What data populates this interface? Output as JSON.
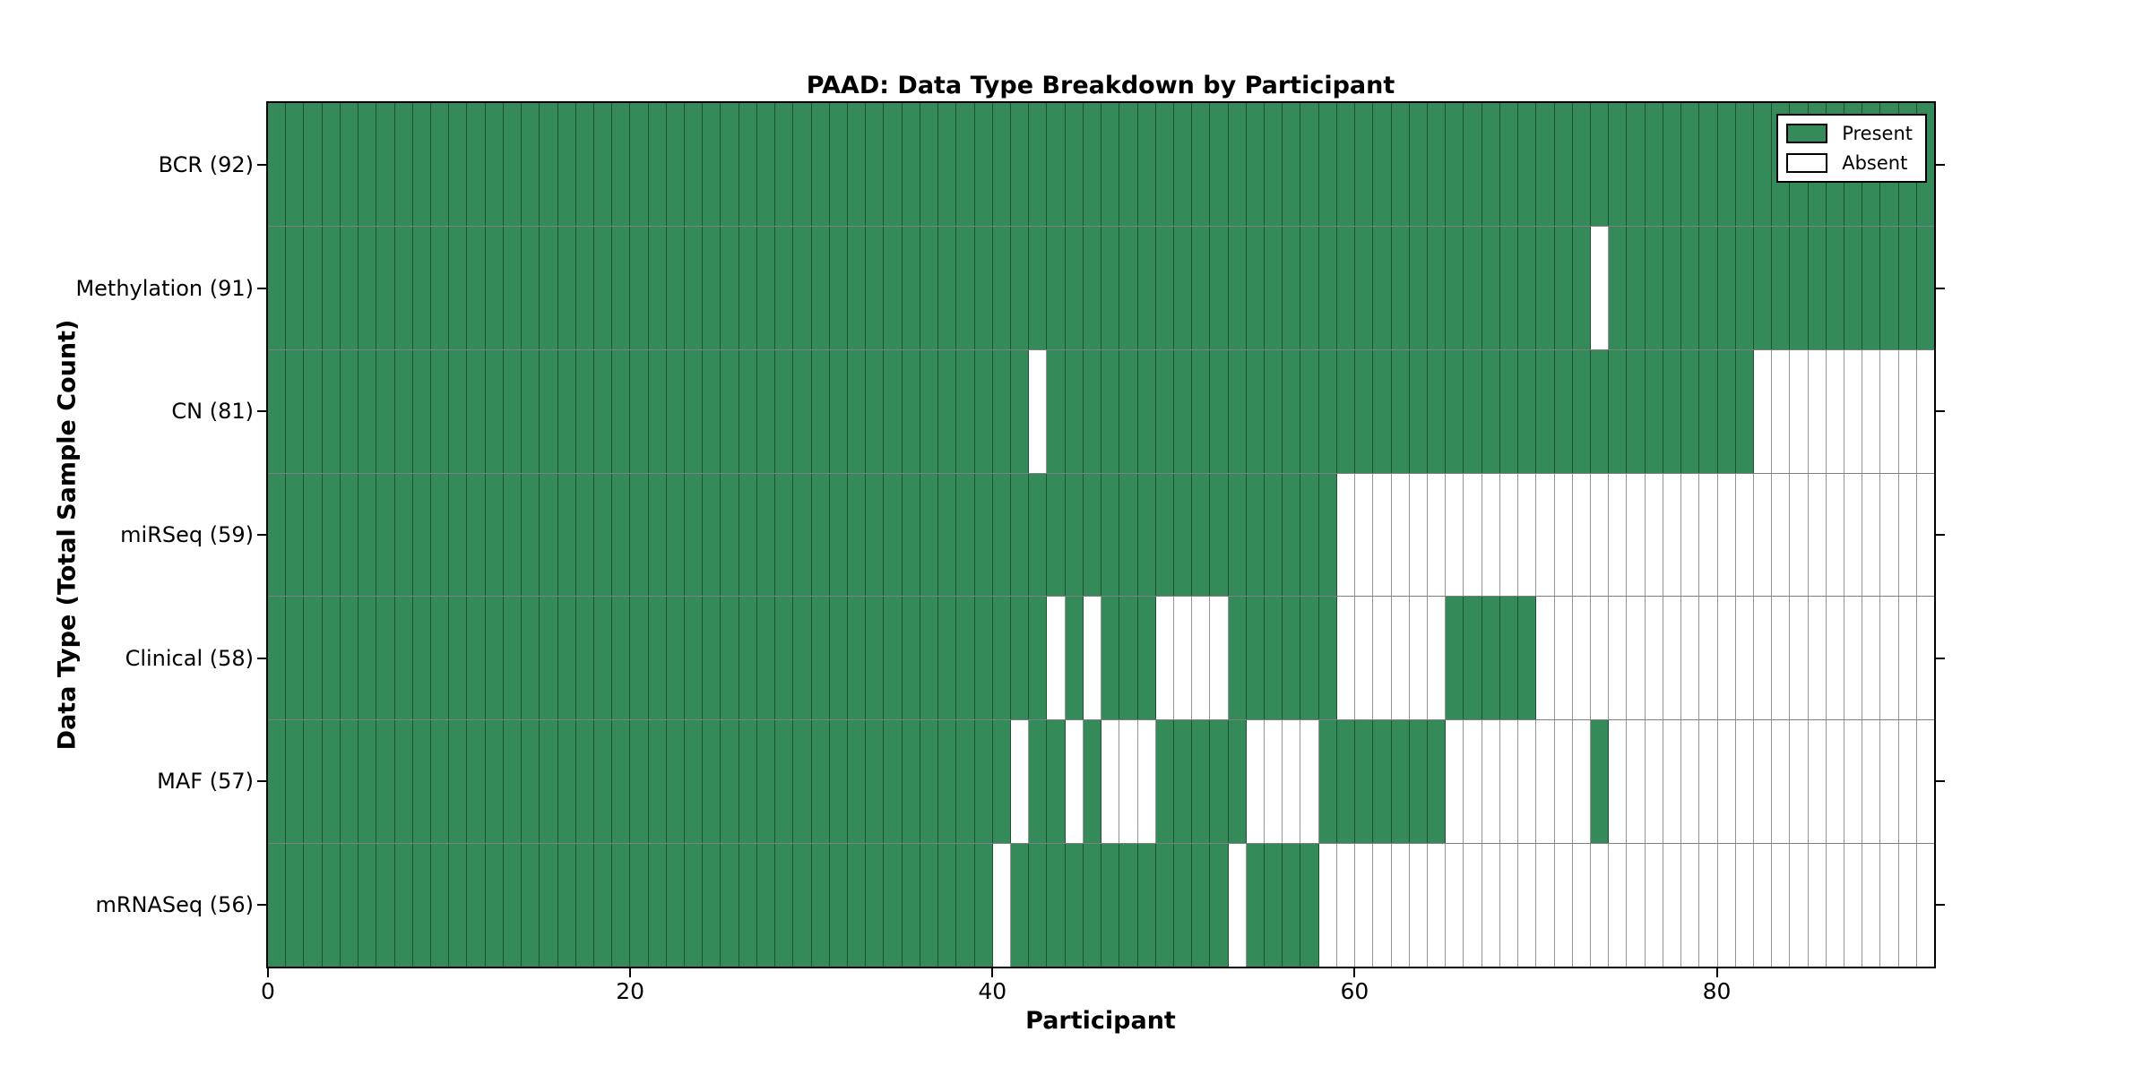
{
  "title": "PAAD: Data Type Breakdown by Participant",
  "x_axis": {
    "label": "Participant",
    "tick_values": [
      0,
      20,
      40,
      60,
      80
    ],
    "tick_labels": [
      "0",
      "20",
      "40",
      "60",
      "80"
    ],
    "range": [
      0,
      92
    ]
  },
  "y_axis": {
    "label": "Data Type (Total Sample Count)"
  },
  "legend": {
    "items": [
      {
        "label": "Present",
        "swatch": "present"
      },
      {
        "label": "Absent",
        "swatch": "absent"
      }
    ],
    "position": "top-right-inside"
  },
  "colors": {
    "present": "#348a58",
    "absent": "#ffffff",
    "gridline": "rgba(0,0,0,0.42)",
    "spine": "#000000",
    "text": "#000000"
  },
  "chart_data": {
    "type": "heatmap",
    "n_participants": 92,
    "value_encoding": {
      "present": 1,
      "absent": 0
    },
    "grid": true,
    "rows": [
      {
        "data_type": "BCR",
        "label": "BCR (92)",
        "present_count": 92,
        "absent_indices": []
      },
      {
        "data_type": "Methylation",
        "label": "Methylation (91)",
        "present_count": 91,
        "absent_indices": [
          73
        ]
      },
      {
        "data_type": "CN",
        "label": "CN (81)",
        "present_count": 81,
        "absent_indices": [
          42,
          82,
          83,
          84,
          85,
          86,
          87,
          88,
          89,
          90,
          91
        ]
      },
      {
        "data_type": "miRSeq",
        "label": "miRSeq (59)",
        "present_count": 59,
        "absent_indices": [
          59,
          60,
          61,
          62,
          63,
          64,
          65,
          66,
          67,
          68,
          69,
          70,
          71,
          72,
          73,
          74,
          75,
          76,
          77,
          78,
          79,
          80,
          81,
          82,
          83,
          84,
          85,
          86,
          87,
          88,
          89,
          90,
          91
        ]
      },
      {
        "data_type": "Clinical",
        "label": "Clinical (58)",
        "present_count": 58,
        "absent_indices": [
          43,
          45,
          49,
          50,
          51,
          52,
          59,
          60,
          61,
          62,
          63,
          64,
          70,
          71,
          72,
          73,
          74,
          75,
          76,
          77,
          78,
          79,
          80,
          81,
          82,
          83,
          84,
          85,
          86,
          87,
          88,
          89,
          90,
          91
        ]
      },
      {
        "data_type": "MAF",
        "label": "MAF (57)",
        "present_count": 57,
        "absent_indices": [
          41,
          44,
          46,
          47,
          48,
          54,
          55,
          56,
          57,
          65,
          66,
          67,
          68,
          69,
          70,
          71,
          72,
          74,
          75,
          76,
          77,
          78,
          79,
          80,
          81,
          82,
          83,
          84,
          85,
          86,
          87,
          88,
          89,
          90,
          91
        ]
      },
      {
        "data_type": "mRNASeq",
        "label": "mRNASeq (56)",
        "present_count": 56,
        "absent_indices": [
          40,
          53,
          58,
          59,
          60,
          61,
          62,
          63,
          64,
          65,
          66,
          67,
          68,
          69,
          70,
          71,
          72,
          73,
          74,
          75,
          76,
          77,
          78,
          79,
          80,
          81,
          82,
          83,
          84,
          85,
          86,
          87,
          88,
          89,
          90,
          91
        ]
      }
    ]
  }
}
